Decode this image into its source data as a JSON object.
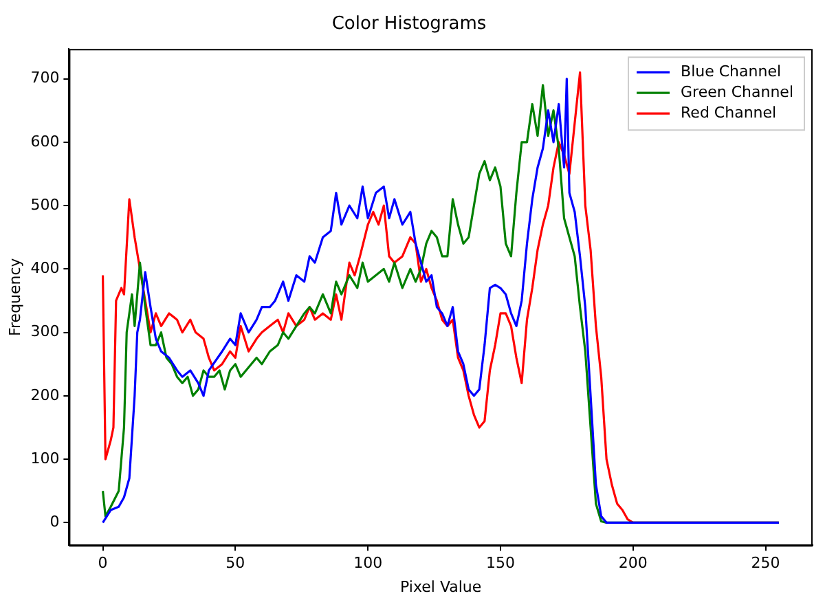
{
  "chart_data": {
    "type": "line",
    "title": "Color Histograms",
    "xlabel": "Pixel Value",
    "ylabel": "Frequency",
    "xlim": [
      -12.75,
      267.75
    ],
    "ylim": [
      -35.6,
      747
    ],
    "xticks": [
      0,
      50,
      100,
      150,
      200,
      250
    ],
    "yticks": [
      0,
      100,
      200,
      300,
      400,
      500,
      600,
      700
    ],
    "grid": false,
    "legend": "top right",
    "marker": "none",
    "line_style": "solid",
    "series": [
      {
        "name": "Blue Channel",
        "color": "#0000ff",
        "x": [
          0,
          3,
          6,
          8,
          10,
          12,
          13,
          14,
          16,
          18,
          20,
          22,
          25,
          28,
          30,
          33,
          36,
          38,
          40,
          45,
          48,
          50,
          52,
          55,
          58,
          60,
          63,
          65,
          68,
          70,
          73,
          76,
          78,
          80,
          83,
          86,
          88,
          90,
          93,
          96,
          98,
          100,
          103,
          106,
          108,
          110,
          113,
          116,
          118,
          120,
          122,
          124,
          126,
          128,
          130,
          132,
          134,
          136,
          138,
          140,
          142,
          144,
          146,
          148,
          150,
          152,
          154,
          156,
          158,
          160,
          162,
          164,
          166,
          168,
          170,
          172,
          174,
          175,
          176,
          178,
          180,
          182,
          184,
          186,
          188,
          190,
          200,
          255
        ],
        "values": [
          0,
          20,
          25,
          40,
          70,
          200,
          300,
          320,
          395,
          340,
          290,
          270,
          260,
          240,
          230,
          240,
          220,
          200,
          240,
          270,
          290,
          280,
          330,
          300,
          320,
          340,
          340,
          350,
          380,
          350,
          390,
          380,
          420,
          410,
          450,
          460,
          520,
          470,
          500,
          480,
          530,
          480,
          520,
          530,
          480,
          510,
          470,
          490,
          440,
          410,
          380,
          390,
          340,
          330,
          310,
          340,
          270,
          250,
          210,
          200,
          210,
          280,
          370,
          375,
          370,
          360,
          330,
          310,
          350,
          440,
          510,
          560,
          590,
          650,
          600,
          660,
          560,
          700,
          520,
          490,
          420,
          340,
          200,
          60,
          10,
          0,
          0,
          0
        ]
      },
      {
        "name": "Green Channel",
        "color": "#008000",
        "x": [
          0,
          1,
          3,
          6,
          8,
          9,
          11,
          12,
          14,
          16,
          18,
          20,
          22,
          24,
          26,
          28,
          30,
          32,
          34,
          36,
          38,
          40,
          42,
          44,
          46,
          48,
          50,
          52,
          54,
          56,
          58,
          60,
          63,
          66,
          68,
          70,
          73,
          76,
          78,
          80,
          83,
          86,
          88,
          90,
          93,
          96,
          98,
          100,
          103,
          106,
          108,
          110,
          113,
          116,
          118,
          120,
          122,
          124,
          126,
          128,
          130,
          132,
          134,
          136,
          138,
          140,
          142,
          144,
          146,
          148,
          150,
          152,
          154,
          156,
          158,
          160,
          162,
          164,
          166,
          168,
          170,
          172,
          174,
          176,
          178,
          180,
          182,
          184,
          186,
          188,
          190,
          200,
          255
        ],
        "values": [
          50,
          10,
          25,
          50,
          150,
          300,
          360,
          310,
          410,
          340,
          280,
          280,
          300,
          260,
          250,
          230,
          220,
          230,
          200,
          210,
          240,
          230,
          230,
          240,
          210,
          240,
          250,
          230,
          240,
          250,
          260,
          250,
          270,
          280,
          300,
          290,
          310,
          330,
          340,
          330,
          360,
          330,
          380,
          360,
          390,
          370,
          410,
          380,
          390,
          400,
          380,
          410,
          370,
          400,
          380,
          400,
          440,
          460,
          450,
          420,
          420,
          510,
          470,
          440,
          450,
          500,
          550,
          570,
          540,
          560,
          530,
          440,
          420,
          520,
          600,
          600,
          660,
          610,
          690,
          610,
          650,
          590,
          480,
          450,
          420,
          340,
          270,
          150,
          30,
          2,
          0,
          0,
          0
        ]
      },
      {
        "name": "Red Channel",
        "color": "#ff0000",
        "x": [
          0,
          1,
          3,
          4,
          5,
          7,
          8,
          10,
          12,
          14,
          16,
          18,
          20,
          22,
          25,
          28,
          30,
          33,
          35,
          38,
          40,
          42,
          45,
          48,
          50,
          52,
          55,
          58,
          60,
          63,
          66,
          68,
          70,
          73,
          76,
          78,
          80,
          83,
          86,
          88,
          90,
          93,
          95,
          97,
          100,
          102,
          104,
          106,
          108,
          110,
          113,
          116,
          118,
          120,
          122,
          124,
          126,
          128,
          130,
          132,
          134,
          136,
          138,
          140,
          142,
          144,
          146,
          148,
          150,
          152,
          154,
          156,
          158,
          160,
          162,
          164,
          166,
          168,
          170,
          172,
          174,
          176,
          178,
          180,
          182,
          184,
          186,
          188,
          190,
          192,
          194,
          196,
          198,
          200,
          255
        ],
        "values": [
          390,
          100,
          130,
          150,
          350,
          370,
          360,
          510,
          450,
          400,
          350,
          300,
          330,
          310,
          330,
          320,
          300,
          320,
          300,
          290,
          260,
          240,
          250,
          270,
          260,
          310,
          270,
          290,
          300,
          310,
          320,
          300,
          330,
          310,
          320,
          340,
          320,
          330,
          320,
          360,
          320,
          410,
          390,
          420,
          470,
          490,
          470,
          500,
          420,
          410,
          420,
          450,
          440,
          380,
          400,
          370,
          350,
          320,
          310,
          320,
          260,
          240,
          200,
          170,
          150,
          160,
          240,
          280,
          330,
          330,
          310,
          260,
          220,
          320,
          370,
          430,
          470,
          500,
          560,
          600,
          580,
          550,
          630,
          710,
          500,
          430,
          310,
          230,
          100,
          60,
          30,
          20,
          5,
          0,
          0
        ]
      }
    ]
  }
}
